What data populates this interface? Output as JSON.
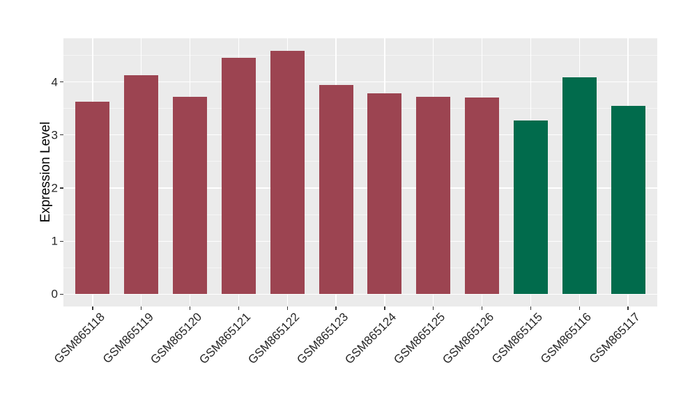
{
  "chart_data": {
    "type": "bar",
    "title": "",
    "xlabel": "",
    "ylabel": "Expression Level",
    "categories": [
      "GSM865118",
      "GSM865119",
      "GSM865120",
      "GSM865121",
      "GSM865122",
      "GSM865123",
      "GSM865124",
      "GSM865125",
      "GSM865126",
      "GSM865115",
      "GSM865116",
      "GSM865117"
    ],
    "values": [
      3.63,
      4.12,
      3.72,
      4.45,
      4.59,
      3.94,
      3.79,
      3.72,
      3.7,
      3.27,
      4.08,
      3.55
    ],
    "bar_colors": [
      "#9C4451",
      "#9C4451",
      "#9C4451",
      "#9C4451",
      "#9C4451",
      "#9C4451",
      "#9C4451",
      "#9C4451",
      "#9C4451",
      "#016B4C",
      "#016B4C",
      "#016B4C"
    ],
    "group_colors": {
      "maroon_group": "#9C4451",
      "green_group": "#016B4C"
    },
    "y_tick_labels": [
      "0",
      "1",
      "2",
      "3",
      "4"
    ],
    "y_major_gridlines": [
      0,
      1,
      2,
      3,
      4
    ],
    "y_minor_gridlines": [
      0.5,
      1.5,
      2.5,
      3.5,
      4.5
    ],
    "ylim": [
      -0.23,
      4.82
    ],
    "bar_width_fraction": 0.7,
    "legend": "none",
    "grid": "on",
    "style": {
      "panel_background": "#EBEBEB",
      "gridline_color": "#FFFFFF",
      "axis_text_color": "#262626",
      "axis_title_color": "#000000",
      "tick_mark_color": "#333333",
      "page_background": "#FFFFFF"
    }
  }
}
